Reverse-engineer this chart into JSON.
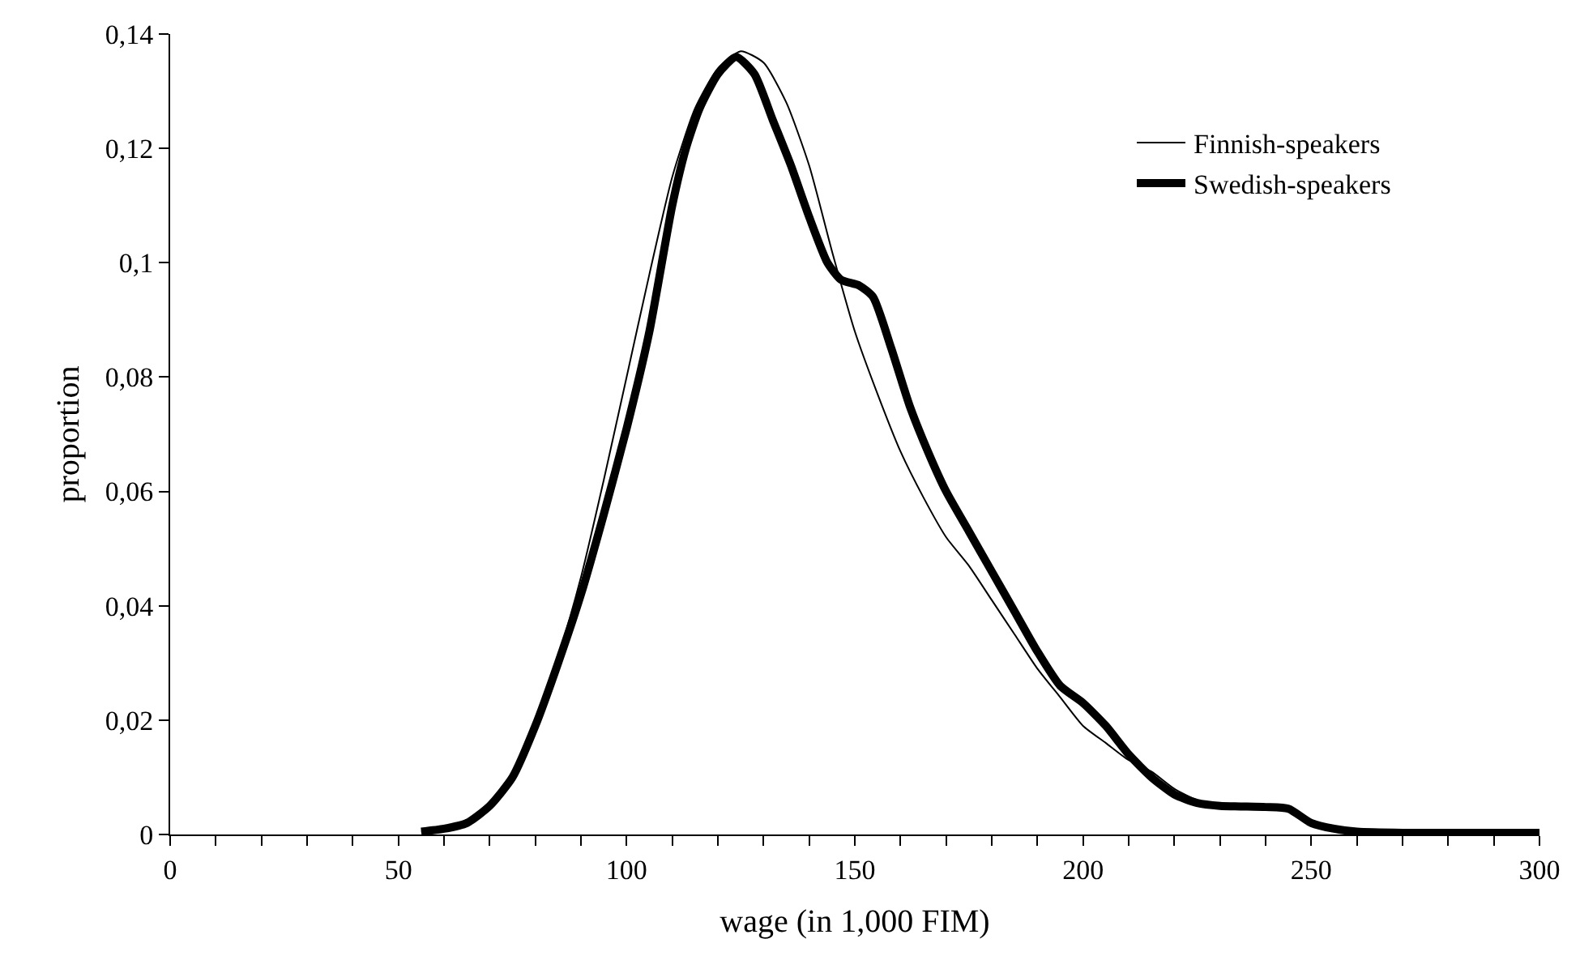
{
  "chart_data": {
    "type": "line",
    "xlabel": "wage (in 1,000 FIM)",
    "ylabel": "proportion",
    "xlim": [
      0,
      300
    ],
    "xticks": [
      0,
      {
        "value": 10,
        "label": null
      },
      {
        "value": 20,
        "label": null
      },
      {
        "value": 30,
        "label": null
      },
      {
        "value": 40,
        "label": null
      },
      50,
      {
        "value": 60,
        "label": null
      },
      {
        "value": 70,
        "label": null
      },
      {
        "value": 80,
        "label": null
      },
      {
        "value": 90,
        "label": null
      },
      100,
      {
        "value": 110,
        "label": null
      },
      {
        "value": 120,
        "label": null
      },
      {
        "value": 130,
        "label": null
      },
      {
        "value": 140,
        "label": null
      },
      150,
      {
        "value": 160,
        "label": null
      },
      {
        "value": 170,
        "label": null
      },
      {
        "value": 180,
        "label": null
      },
      {
        "value": 190,
        "label": null
      },
      200,
      {
        "value": 210,
        "label": null
      },
      {
        "value": 220,
        "label": null
      },
      {
        "value": 230,
        "label": null
      },
      {
        "value": 240,
        "label": null
      },
      250,
      {
        "value": 260,
        "label": null
      },
      {
        "value": 270,
        "label": null
      },
      {
        "value": 280,
        "label": null
      },
      {
        "value": 290,
        "label": null
      },
      300
    ],
    "ylim": [
      0,
      0.14
    ],
    "yticks": [
      {
        "value": 0,
        "label": "0"
      },
      {
        "value": 0.02,
        "label": "0,02"
      },
      {
        "value": 0.04,
        "label": "0,04"
      },
      {
        "value": 0.06,
        "label": "0,06"
      },
      {
        "value": 0.08,
        "label": "0,08"
      },
      {
        "value": 0.1,
        "label": "0,1"
      },
      {
        "value": 0.12,
        "label": "0,12"
      },
      {
        "value": 0.14,
        "label": "0,14"
      }
    ],
    "legend": "top right",
    "marker": "none",
    "line_style": "solid",
    "series": [
      {
        "name": "Finnish-speakers",
        "color": "#000000",
        "x": [
          55,
          60,
          65,
          70,
          75,
          80,
          85,
          90,
          95,
          100,
          105,
          110,
          115,
          120,
          125,
          130,
          135,
          140,
          145,
          150,
          155,
          160,
          165,
          170,
          175,
          180,
          185,
          190,
          195,
          200,
          205,
          210,
          215,
          220,
          225,
          230,
          240,
          245,
          250,
          255,
          260,
          270,
          300
        ],
        "values": [
          0.0005,
          0.001,
          0.002,
          0.005,
          0.01,
          0.019,
          0.031,
          0.045,
          0.062,
          0.08,
          0.098,
          0.115,
          0.127,
          0.134,
          0.137,
          0.135,
          0.128,
          0.117,
          0.102,
          0.088,
          0.077,
          0.067,
          0.059,
          0.052,
          0.047,
          0.041,
          0.035,
          0.029,
          0.024,
          0.019,
          0.016,
          0.013,
          0.011,
          0.008,
          0.006,
          0.005,
          0.0048,
          0.0045,
          0.002,
          0.001,
          0.0005,
          0.0003,
          0.0003
        ]
      },
      {
        "name": "Swedish-speakers",
        "color": "#000000",
        "x": [
          55,
          60,
          65,
          70,
          75,
          80,
          85,
          90,
          95,
          100,
          105,
          110,
          113,
          116,
          120,
          124,
          128,
          132,
          136,
          140,
          144,
          147,
          151,
          154,
          158,
          162,
          166,
          170,
          175,
          180,
          185,
          190,
          195,
          200,
          205,
          210,
          215,
          220,
          225,
          230,
          240,
          245,
          250,
          255,
          260,
          270,
          300
        ],
        "values": [
          0.0005,
          0.001,
          0.002,
          0.005,
          0.01,
          0.019,
          0.03,
          0.042,
          0.056,
          0.071,
          0.088,
          0.11,
          0.12,
          0.127,
          0.133,
          0.136,
          0.133,
          0.125,
          0.117,
          0.108,
          0.1,
          0.097,
          0.096,
          0.094,
          0.085,
          0.075,
          0.067,
          0.06,
          0.053,
          0.046,
          0.039,
          0.032,
          0.026,
          0.023,
          0.019,
          0.014,
          0.01,
          0.007,
          0.0055,
          0.005,
          0.0048,
          0.0045,
          0.002,
          0.001,
          0.0005,
          0.0003,
          0.0003
        ]
      }
    ]
  }
}
